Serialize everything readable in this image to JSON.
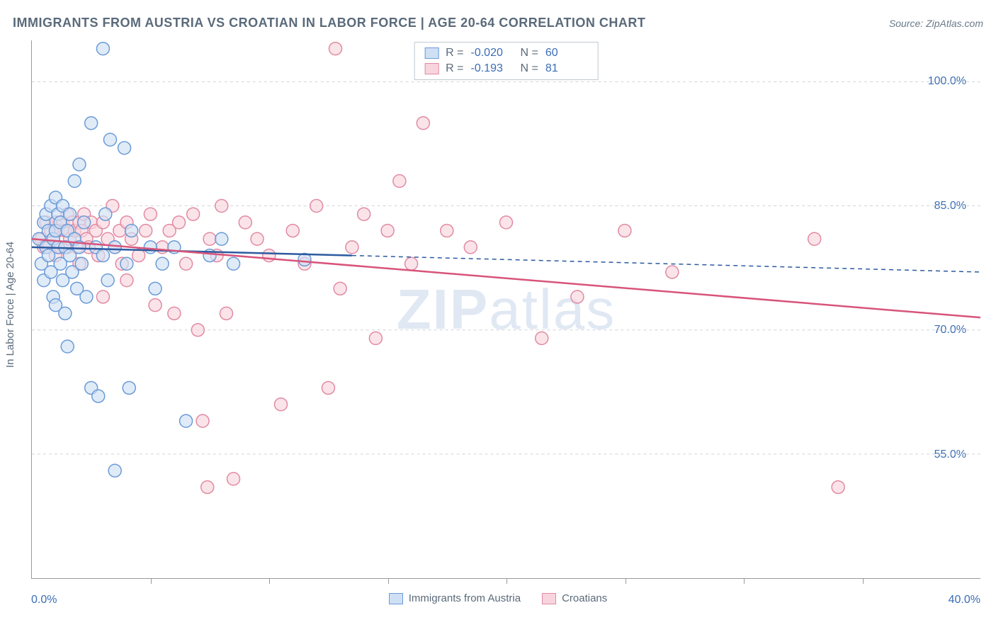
{
  "title": "IMMIGRANTS FROM AUSTRIA VS CROATIAN IN LABOR FORCE | AGE 20-64 CORRELATION CHART",
  "source": "Source: ZipAtlas.com",
  "watermark_bold": "ZIP",
  "watermark_rest": "atlas",
  "y_axis_label": "In Labor Force | Age 20-64",
  "chart": {
    "type": "scatter-correlation",
    "background_color": "#ffffff",
    "grid_color": "#d0d4d8",
    "axis_color": "#999999",
    "x_min": 0.0,
    "x_max": 40.0,
    "x_label_min": "0.0%",
    "x_label_max": "40.0%",
    "x_tick_positions": [
      5,
      10,
      15,
      20,
      25,
      30,
      35
    ],
    "y_min": 40.0,
    "y_max": 105.0,
    "y_gridlines": [
      55.0,
      70.0,
      85.0,
      100.0
    ],
    "y_tick_labels": [
      "55.0%",
      "70.0%",
      "85.0%",
      "100.0%"
    ],
    "marker_radius": 9,
    "marker_stroke_width": 1.5,
    "trend_line_width": 2.5,
    "series": [
      {
        "id": "austria",
        "label": "Immigrants from Austria",
        "fill_color": "#cfe0f5",
        "stroke_color": "#6a9bd8",
        "line_color": "#2c5aa0",
        "R": "-0.020",
        "N": "60",
        "trend": {
          "x1": 0.0,
          "y1": 80.0,
          "x2": 13.5,
          "y2": 79.0,
          "ext_x2": 40.0,
          "ext_y2": 77.0
        },
        "points": [
          [
            0.3,
            81
          ],
          [
            0.4,
            78
          ],
          [
            0.5,
            83
          ],
          [
            0.5,
            76
          ],
          [
            0.6,
            84
          ],
          [
            0.6,
            80
          ],
          [
            0.7,
            82
          ],
          [
            0.7,
            79
          ],
          [
            0.8,
            85
          ],
          [
            0.8,
            77
          ],
          [
            0.9,
            81
          ],
          [
            0.9,
            74
          ],
          [
            1.0,
            82
          ],
          [
            1.0,
            86
          ],
          [
            1.0,
            73
          ],
          [
            1.1,
            84
          ],
          [
            1.1,
            80
          ],
          [
            1.2,
            78
          ],
          [
            1.2,
            83
          ],
          [
            1.3,
            85
          ],
          [
            1.3,
            76
          ],
          [
            1.4,
            80
          ],
          [
            1.4,
            72
          ],
          [
            1.5,
            82
          ],
          [
            1.5,
            68
          ],
          [
            1.6,
            84
          ],
          [
            1.6,
            79
          ],
          [
            1.7,
            77
          ],
          [
            1.8,
            81
          ],
          [
            1.8,
            88
          ],
          [
            1.9,
            75
          ],
          [
            2.0,
            80
          ],
          [
            2.0,
            90
          ],
          [
            2.1,
            78
          ],
          [
            2.2,
            83
          ],
          [
            2.3,
            74
          ],
          [
            2.5,
            95
          ],
          [
            2.5,
            63
          ],
          [
            2.7,
            80
          ],
          [
            2.8,
            62
          ],
          [
            3.0,
            104
          ],
          [
            3.0,
            79
          ],
          [
            3.1,
            84
          ],
          [
            3.2,
            76
          ],
          [
            3.3,
            93
          ],
          [
            3.5,
            80
          ],
          [
            3.5,
            53
          ],
          [
            3.9,
            92
          ],
          [
            4.0,
            78
          ],
          [
            4.1,
            63
          ],
          [
            4.2,
            82
          ],
          [
            5.0,
            80
          ],
          [
            5.2,
            75
          ],
          [
            5.5,
            78
          ],
          [
            6.0,
            80
          ],
          [
            6.5,
            59
          ],
          [
            7.5,
            79
          ],
          [
            8.0,
            81
          ],
          [
            8.5,
            78
          ],
          [
            11.5,
            78.5
          ]
        ]
      },
      {
        "id": "croatia",
        "label": "Croatians",
        "fill_color": "#f8d5de",
        "stroke_color": "#e28aa2",
        "line_color": "#d8547a",
        "R": "-0.193",
        "N": "81",
        "trend": {
          "x1": 0.0,
          "y1": 81.0,
          "x2": 40.0,
          "y2": 71.5,
          "ext_x2": 40.0,
          "ext_y2": 71.5
        },
        "points": [
          [
            0.4,
            81
          ],
          [
            0.5,
            80
          ],
          [
            0.6,
            83
          ],
          [
            0.7,
            80
          ],
          [
            0.8,
            82
          ],
          [
            0.9,
            81
          ],
          [
            1.0,
            83
          ],
          [
            1.0,
            79
          ],
          [
            1.1,
            82
          ],
          [
            1.2,
            80
          ],
          [
            1.3,
            83
          ],
          [
            1.4,
            82
          ],
          [
            1.5,
            84
          ],
          [
            1.5,
            80
          ],
          [
            1.6,
            81
          ],
          [
            1.7,
            83
          ],
          [
            1.8,
            82
          ],
          [
            1.9,
            80
          ],
          [
            2.0,
            83
          ],
          [
            2.0,
            78
          ],
          [
            2.1,
            82
          ],
          [
            2.2,
            84
          ],
          [
            2.3,
            81
          ],
          [
            2.4,
            80
          ],
          [
            2.5,
            83
          ],
          [
            2.7,
            82
          ],
          [
            2.8,
            79
          ],
          [
            3.0,
            83
          ],
          [
            3.0,
            74
          ],
          [
            3.2,
            81
          ],
          [
            3.4,
            85
          ],
          [
            3.5,
            80
          ],
          [
            3.7,
            82
          ],
          [
            3.8,
            78
          ],
          [
            4.0,
            83
          ],
          [
            4.0,
            76
          ],
          [
            4.2,
            81
          ],
          [
            4.5,
            79
          ],
          [
            4.8,
            82
          ],
          [
            5.0,
            84
          ],
          [
            5.2,
            73
          ],
          [
            5.5,
            80
          ],
          [
            5.8,
            82
          ],
          [
            6.0,
            72
          ],
          [
            6.2,
            83
          ],
          [
            6.5,
            78
          ],
          [
            6.8,
            84
          ],
          [
            7.0,
            70
          ],
          [
            7.2,
            59
          ],
          [
            7.4,
            51
          ],
          [
            7.5,
            81
          ],
          [
            7.8,
            79
          ],
          [
            8.0,
            85
          ],
          [
            8.2,
            72
          ],
          [
            8.5,
            52
          ],
          [
            9.0,
            83
          ],
          [
            9.5,
            81
          ],
          [
            10.0,
            79
          ],
          [
            10.5,
            61
          ],
          [
            11.0,
            82
          ],
          [
            11.5,
            78
          ],
          [
            12.0,
            85
          ],
          [
            12.5,
            63
          ],
          [
            12.8,
            104
          ],
          [
            13.0,
            75
          ],
          [
            13.5,
            80
          ],
          [
            14.0,
            84
          ],
          [
            14.5,
            69
          ],
          [
            15.0,
            82
          ],
          [
            15.5,
            88
          ],
          [
            16.0,
            78
          ],
          [
            16.5,
            95
          ],
          [
            17.5,
            82
          ],
          [
            18.5,
            80
          ],
          [
            20.0,
            83
          ],
          [
            21.5,
            69
          ],
          [
            23.0,
            74
          ],
          [
            25.0,
            82
          ],
          [
            27.0,
            77
          ],
          [
            33.0,
            81
          ],
          [
            34.0,
            51
          ]
        ]
      }
    ]
  }
}
